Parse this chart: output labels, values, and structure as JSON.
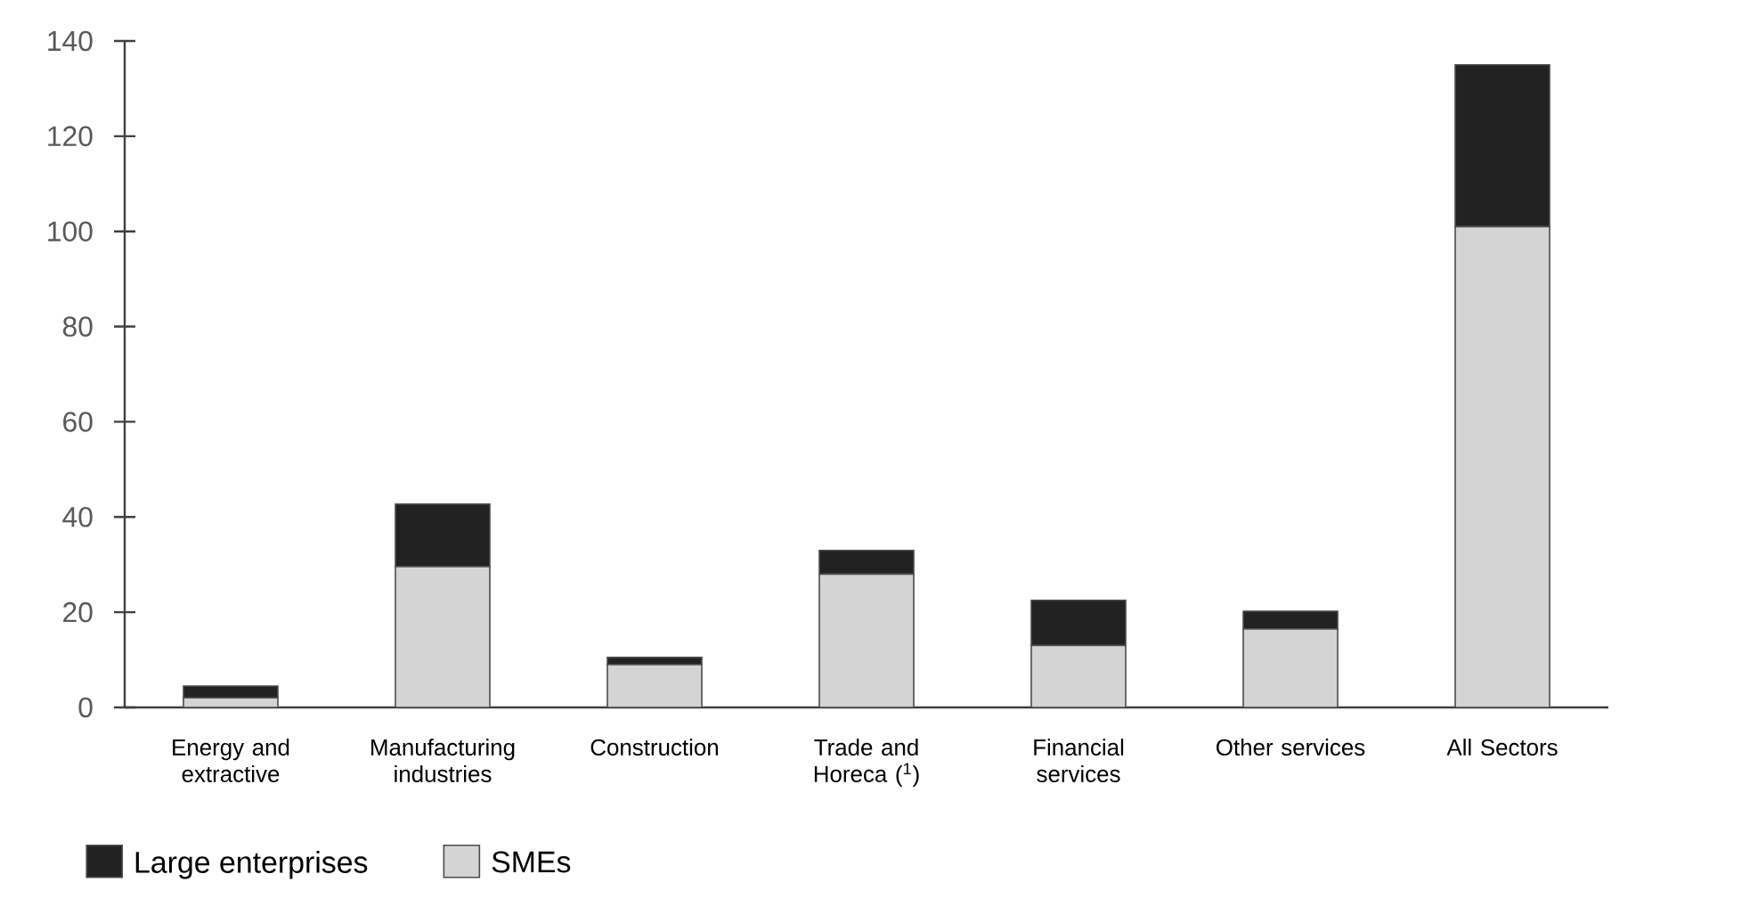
{
  "chart_data": {
    "type": "bar",
    "stacked": true,
    "categories": [
      "Energy and extractive",
      "Manufacturing industries",
      "Construction",
      "Trade and Horeca ($^{1}$)",
      "Financial services",
      "Other services",
      "All Sectors"
    ],
    "series": [
      {
        "name": "SMEs",
        "color": "#d4d4d4",
        "values": [
          2,
          29.6,
          9,
          28,
          13,
          16.5,
          101
        ]
      },
      {
        "name": "Large enterprises",
        "color": "#222222",
        "values": [
          2.5,
          13.1,
          1.5,
          5,
          9.5,
          3.7,
          34
        ]
      }
    ],
    "ylim": [
      0,
      140
    ],
    "yticks": [
      0,
      20,
      40,
      60,
      80,
      100,
      120,
      140
    ],
    "grid": false,
    "legend": "bottom"
  }
}
